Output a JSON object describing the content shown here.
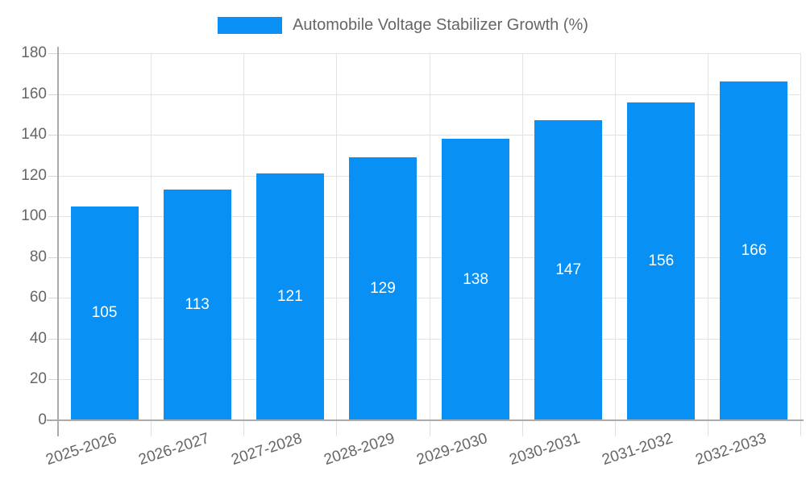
{
  "legend": {
    "series_label": "Automobile Voltage Stabilizer Growth (%)"
  },
  "colors": {
    "bar": "#0990f5",
    "grid": "#e3e3e3",
    "axis": "#ababab",
    "tick_text": "#666666",
    "legend_text": "#666666",
    "bar_label_text": "#ffffff"
  },
  "chart_data": {
    "type": "bar",
    "title": "Automobile Voltage Stabilizer Growth (%)",
    "categories": [
      "2025-2026",
      "2026-2027",
      "2027-2028",
      "2028-2029",
      "2029-2030",
      "2030-2031",
      "2031-2032",
      "2032-2033"
    ],
    "values": [
      105,
      113,
      121,
      129,
      138,
      147,
      156,
      166
    ],
    "xlabel": "",
    "ylabel": "",
    "ylim": [
      0,
      180
    ],
    "yticks": [
      0,
      20,
      40,
      60,
      80,
      100,
      120,
      140,
      160,
      180
    ],
    "grid": true,
    "legend_position": "top",
    "bar_color": "#0990f5",
    "value_label_position": "inside-center",
    "x_tick_rotation_deg": -18
  }
}
